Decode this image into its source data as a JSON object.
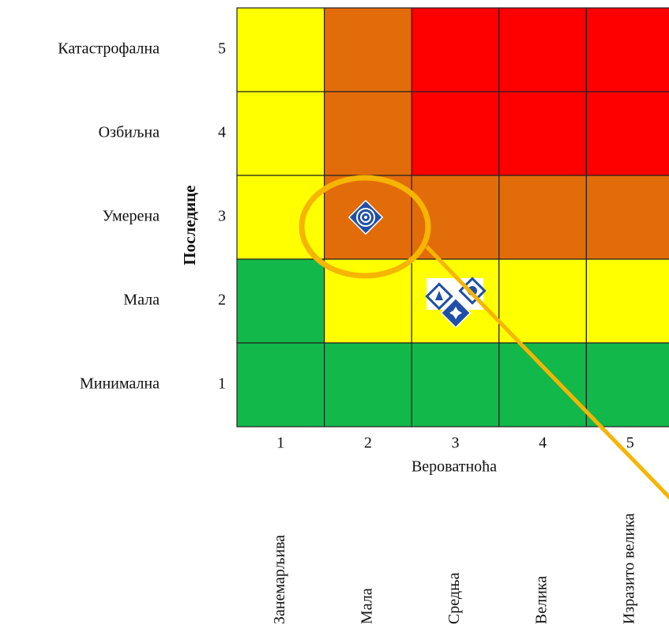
{
  "y_axis": {
    "title": "Последице",
    "levels": [
      {
        "label": "Катастрофална",
        "value": 5
      },
      {
        "label": "Озбиљна",
        "value": 4
      },
      {
        "label": "Умерена",
        "value": 3
      },
      {
        "label": "Мала",
        "value": 2
      },
      {
        "label": "Минимална",
        "value": 1
      }
    ]
  },
  "x_axis": {
    "title": "Вероватноћа",
    "levels": [
      {
        "label": "Занемарљива",
        "value": 1
      },
      {
        "label": "Мала",
        "value": 2
      },
      {
        "label": "Средња",
        "value": 3
      },
      {
        "label": "Велика",
        "value": 4
      },
      {
        "label": "Изразито велика",
        "value": 5
      }
    ]
  },
  "matrix": {
    "colors": [
      [
        "#ffff00",
        "#e36c0a",
        "#ff0000",
        "#ff0000",
        "#ff0000"
      ],
      [
        "#ffff00",
        "#e36c0a",
        "#ff0000",
        "#ff0000",
        "#ff0000"
      ],
      [
        "#ffff00",
        "#e36c0a",
        "#e36c0a",
        "#e36c0a",
        "#e36c0a"
      ],
      [
        "#12b84a",
        "#ffff00",
        "#ffff00",
        "#ffff00",
        "#ffff00"
      ],
      [
        "#12b84a",
        "#12b84a",
        "#12b84a",
        "#12b84a",
        "#12b84a"
      ]
    ]
  }
}
